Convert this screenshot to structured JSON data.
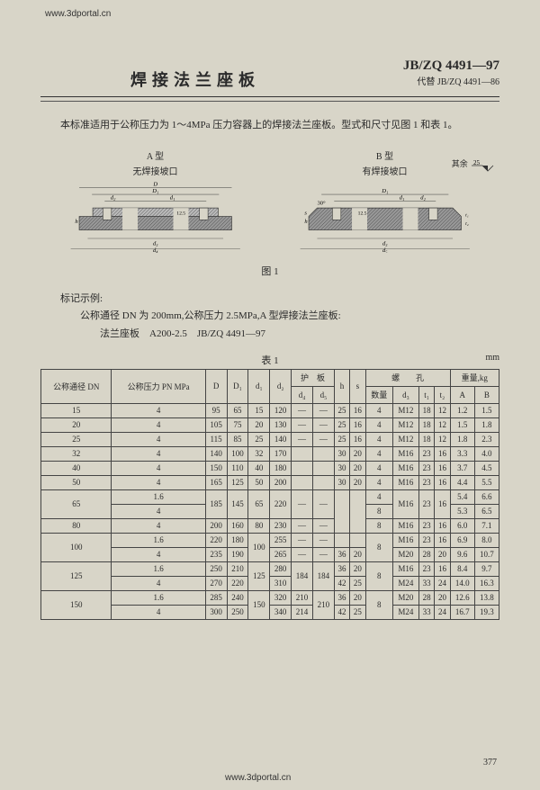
{
  "watermark": "www.3dportal.cn",
  "header": {
    "title": "焊接法兰座板",
    "std_main": "JB/ZQ 4491—97",
    "std_sub": "代替 JB/ZQ 4491—86"
  },
  "intro": "本标准适用于公称压力为 1～4MPa 压力容器上的焊接法兰座板。型式和尺寸见图 1 和表 1。",
  "diagrams": {
    "a": {
      "label": "A 型",
      "sublabel": "无焊接坡口"
    },
    "b": {
      "label": "B 型",
      "sublabel": "有焊接坡口"
    },
    "rest": "其余",
    "ra": "25"
  },
  "fig_label": "图 1",
  "marking": {
    "heading": "标记示例:",
    "line1": "公称通径 DN 为 200mm,公称压力 2.5MPa,A 型焊接法兰座板:",
    "line2": "法兰座板　A200-2.5　JB/ZQ 4491—97"
  },
  "table_label": "表 1",
  "unit": "mm",
  "columns": {
    "dn": "公称通径\nDN",
    "pn": "公称压力 PN\nMPa",
    "D": "D",
    "D1": "D₁",
    "d1": "d₁",
    "d2": "d₂",
    "guard": "护　板",
    "d4": "d₄",
    "d5": "d₅",
    "h": "h",
    "s": "s",
    "bolt": "螺　　孔",
    "qty": "数量",
    "d3": "d₃",
    "t1": "t₁",
    "t2": "t₂",
    "weight": "重量,kg",
    "A": "A",
    "B": "B"
  },
  "rows": [
    {
      "dn": "15",
      "pn": "4",
      "D": "95",
      "D1": "65",
      "d1": "15",
      "d2": "120",
      "d4": "—",
      "d5": "—",
      "h": "25",
      "s": "16",
      "qty": "4",
      "d3": "M12",
      "t1": "18",
      "t2": "12",
      "A": "1.2",
      "B": "1.5"
    },
    {
      "dn": "20",
      "pn": "4",
      "D": "105",
      "D1": "75",
      "d1": "20",
      "d2": "130",
      "d4": "—",
      "d5": "—",
      "h": "25",
      "s": "16",
      "qty": "4",
      "d3": "M12",
      "t1": "18",
      "t2": "12",
      "A": "1.5",
      "B": "1.8"
    },
    {
      "dn": "25",
      "pn": "4",
      "D": "115",
      "D1": "85",
      "d1": "25",
      "d2": "140",
      "d4": "—",
      "d5": "—",
      "h": "25",
      "s": "16",
      "qty": "4",
      "d3": "M12",
      "t1": "18",
      "t2": "12",
      "A": "1.8",
      "B": "2.3"
    },
    {
      "dn": "32",
      "pn": "4",
      "D": "140",
      "D1": "100",
      "d1": "32",
      "d2": "170",
      "d4": "",
      "d5": "",
      "h": "30",
      "s": "20",
      "qty": "4",
      "d3": "M16",
      "t1": "23",
      "t2": "16",
      "A": "3.3",
      "B": "4.0"
    },
    {
      "dn": "40",
      "pn": "4",
      "D": "150",
      "D1": "110",
      "d1": "40",
      "d2": "180",
      "d4": "",
      "d5": "",
      "h": "30",
      "s": "20",
      "qty": "4",
      "d3": "M16",
      "t1": "23",
      "t2": "16",
      "A": "3.7",
      "B": "4.5"
    },
    {
      "dn": "50",
      "pn": "4",
      "D": "165",
      "D1": "125",
      "d1": "50",
      "d2": "200",
      "d4": "",
      "d5": "",
      "h": "30",
      "s": "20",
      "qty": "4",
      "d3": "M16",
      "t1": "23",
      "t2": "16",
      "A": "4.4",
      "B": "5.5"
    },
    {
      "dn": "65",
      "pn": "1.6",
      "D": "185",
      "D1": "145",
      "d1": "65",
      "d2": "220",
      "d4": "—",
      "d5": "—",
      "h": "",
      "s": "",
      "qty": "4",
      "d3": "M16",
      "t1": "23",
      "t2": "16",
      "A": "5.4",
      "B": "6.6"
    },
    {
      "dn": "",
      "pn": "4",
      "D": "",
      "D1": "",
      "d1": "",
      "d2": "",
      "d4": "",
      "d5": "",
      "h": "",
      "s": "",
      "qty": "8",
      "d3": "",
      "t1": "",
      "t2": "",
      "A": "5.3",
      "B": "6.5"
    },
    {
      "dn": "80",
      "pn": "4",
      "D": "200",
      "D1": "160",
      "d1": "80",
      "d2": "230",
      "d4": "—",
      "d5": "—",
      "h": "",
      "s": "",
      "qty": "8",
      "d3": "M16",
      "t1": "23",
      "t2": "16",
      "A": "6.0",
      "B": "7.1"
    },
    {
      "dn": "100",
      "pn": "1.6",
      "D": "220",
      "D1": "180",
      "d1": "100",
      "d2": "255",
      "d4": "—",
      "d5": "—",
      "h": "",
      "s": "",
      "qty": "8",
      "d3": "M16",
      "t1": "23",
      "t2": "16",
      "A": "6.9",
      "B": "8.0"
    },
    {
      "dn": "",
      "pn": "4",
      "D": "235",
      "D1": "190",
      "d1": "",
      "d2": "265",
      "d4": "—",
      "d5": "—",
      "h": "36",
      "s": "20",
      "qty": "",
      "d3": "M20",
      "t1": "28",
      "t2": "20",
      "A": "9.6",
      "B": "10.7"
    },
    {
      "dn": "125",
      "pn": "1.6",
      "D": "250",
      "D1": "210",
      "d1": "125",
      "d2": "280",
      "d4": "184",
      "d5": "184",
      "h": "36",
      "s": "20",
      "qty": "8",
      "d3": "M16",
      "t1": "23",
      "t2": "16",
      "A": "8.4",
      "B": "9.7"
    },
    {
      "dn": "",
      "pn": "4",
      "D": "270",
      "D1": "220",
      "d1": "",
      "d2": "310",
      "d4": "",
      "d5": "",
      "h": "42",
      "s": "25",
      "qty": "",
      "d3": "M24",
      "t1": "33",
      "t2": "24",
      "A": "14.0",
      "B": "16.3"
    },
    {
      "dn": "150",
      "pn": "1.6",
      "D": "285",
      "D1": "240",
      "d1": "150",
      "d2": "320",
      "d4": "210",
      "d5": "210",
      "h": "36",
      "s": "20",
      "qty": "8",
      "d3": "M20",
      "t1": "28",
      "t2": "20",
      "A": "12.6",
      "B": "13.8"
    },
    {
      "dn": "",
      "pn": "4",
      "D": "300",
      "D1": "250",
      "d1": "",
      "d2": "340",
      "d4": "214",
      "d5": "",
      "h": "42",
      "s": "25",
      "qty": "",
      "d3": "M24",
      "t1": "33",
      "t2": "24",
      "A": "16.7",
      "B": "19.3"
    }
  ],
  "page_num": "377"
}
